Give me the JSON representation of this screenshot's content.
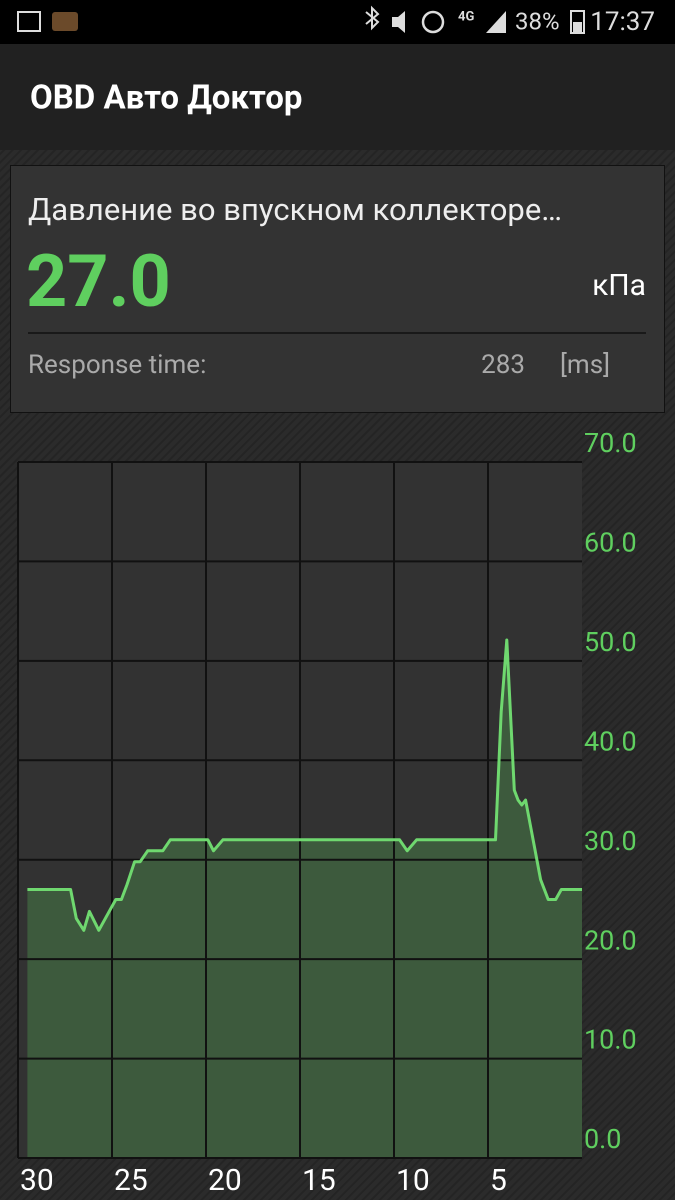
{
  "status_bar": {
    "network": "4G",
    "battery": "38%",
    "time": "17:37"
  },
  "app_bar": {
    "title": "OBD Авто Доктор"
  },
  "card": {
    "title": "Давление во впускном коллекторе…",
    "value": "27.0",
    "unit": "кПа",
    "response_label": "Response time:",
    "response_value": "283",
    "response_unit": "[ms]"
  },
  "chart_data": {
    "type": "area",
    "x": [
      29.5,
      27.2,
      26.9,
      26.5,
      26.2,
      25.7,
      24.8,
      24.5,
      24.2,
      23.8,
      23.5,
      23.1,
      22.3,
      21.9,
      19.9,
      19.6,
      19.1,
      9.7,
      9.3,
      8.8,
      4.6,
      4.3,
      4.0,
      3.6,
      3.4,
      3.2,
      3.0,
      2.5,
      2.2,
      1.8,
      1.4,
      1.1,
      0
    ],
    "series": [
      {
        "color": "#6fd86f",
        "fill": "#3d5a3d",
        "values": [
          27.0,
          27.0,
          24.1,
          22.9,
          24.8,
          22.9,
          26.0,
          26.0,
          27.5,
          29.8,
          29.8,
          30.9,
          30.9,
          32.0,
          32.0,
          30.9,
          32.0,
          32.0,
          30.9,
          32.0,
          32.0,
          44.9,
          52.1,
          37.0,
          36.0,
          35.5,
          36.0,
          31.0,
          28.0,
          26.0,
          26.0,
          27.0,
          27.0
        ]
      }
    ],
    "xlim": [
      30,
      0
    ],
    "xticks": [
      30,
      25,
      20,
      15,
      10,
      5
    ],
    "ylim": [
      0,
      70
    ],
    "yticks": [
      {
        "value": 0,
        "label": "0.0"
      },
      {
        "value": 10,
        "label": "10.0"
      },
      {
        "value": 20,
        "label": "20.0"
      },
      {
        "value": 30,
        "label": "30.0"
      },
      {
        "value": 40,
        "label": "40.0"
      },
      {
        "value": 50,
        "label": "50.0"
      },
      {
        "value": 60,
        "label": "60.0"
      },
      {
        "value": 70,
        "label": "70.0"
      }
    ],
    "grid": true
  }
}
